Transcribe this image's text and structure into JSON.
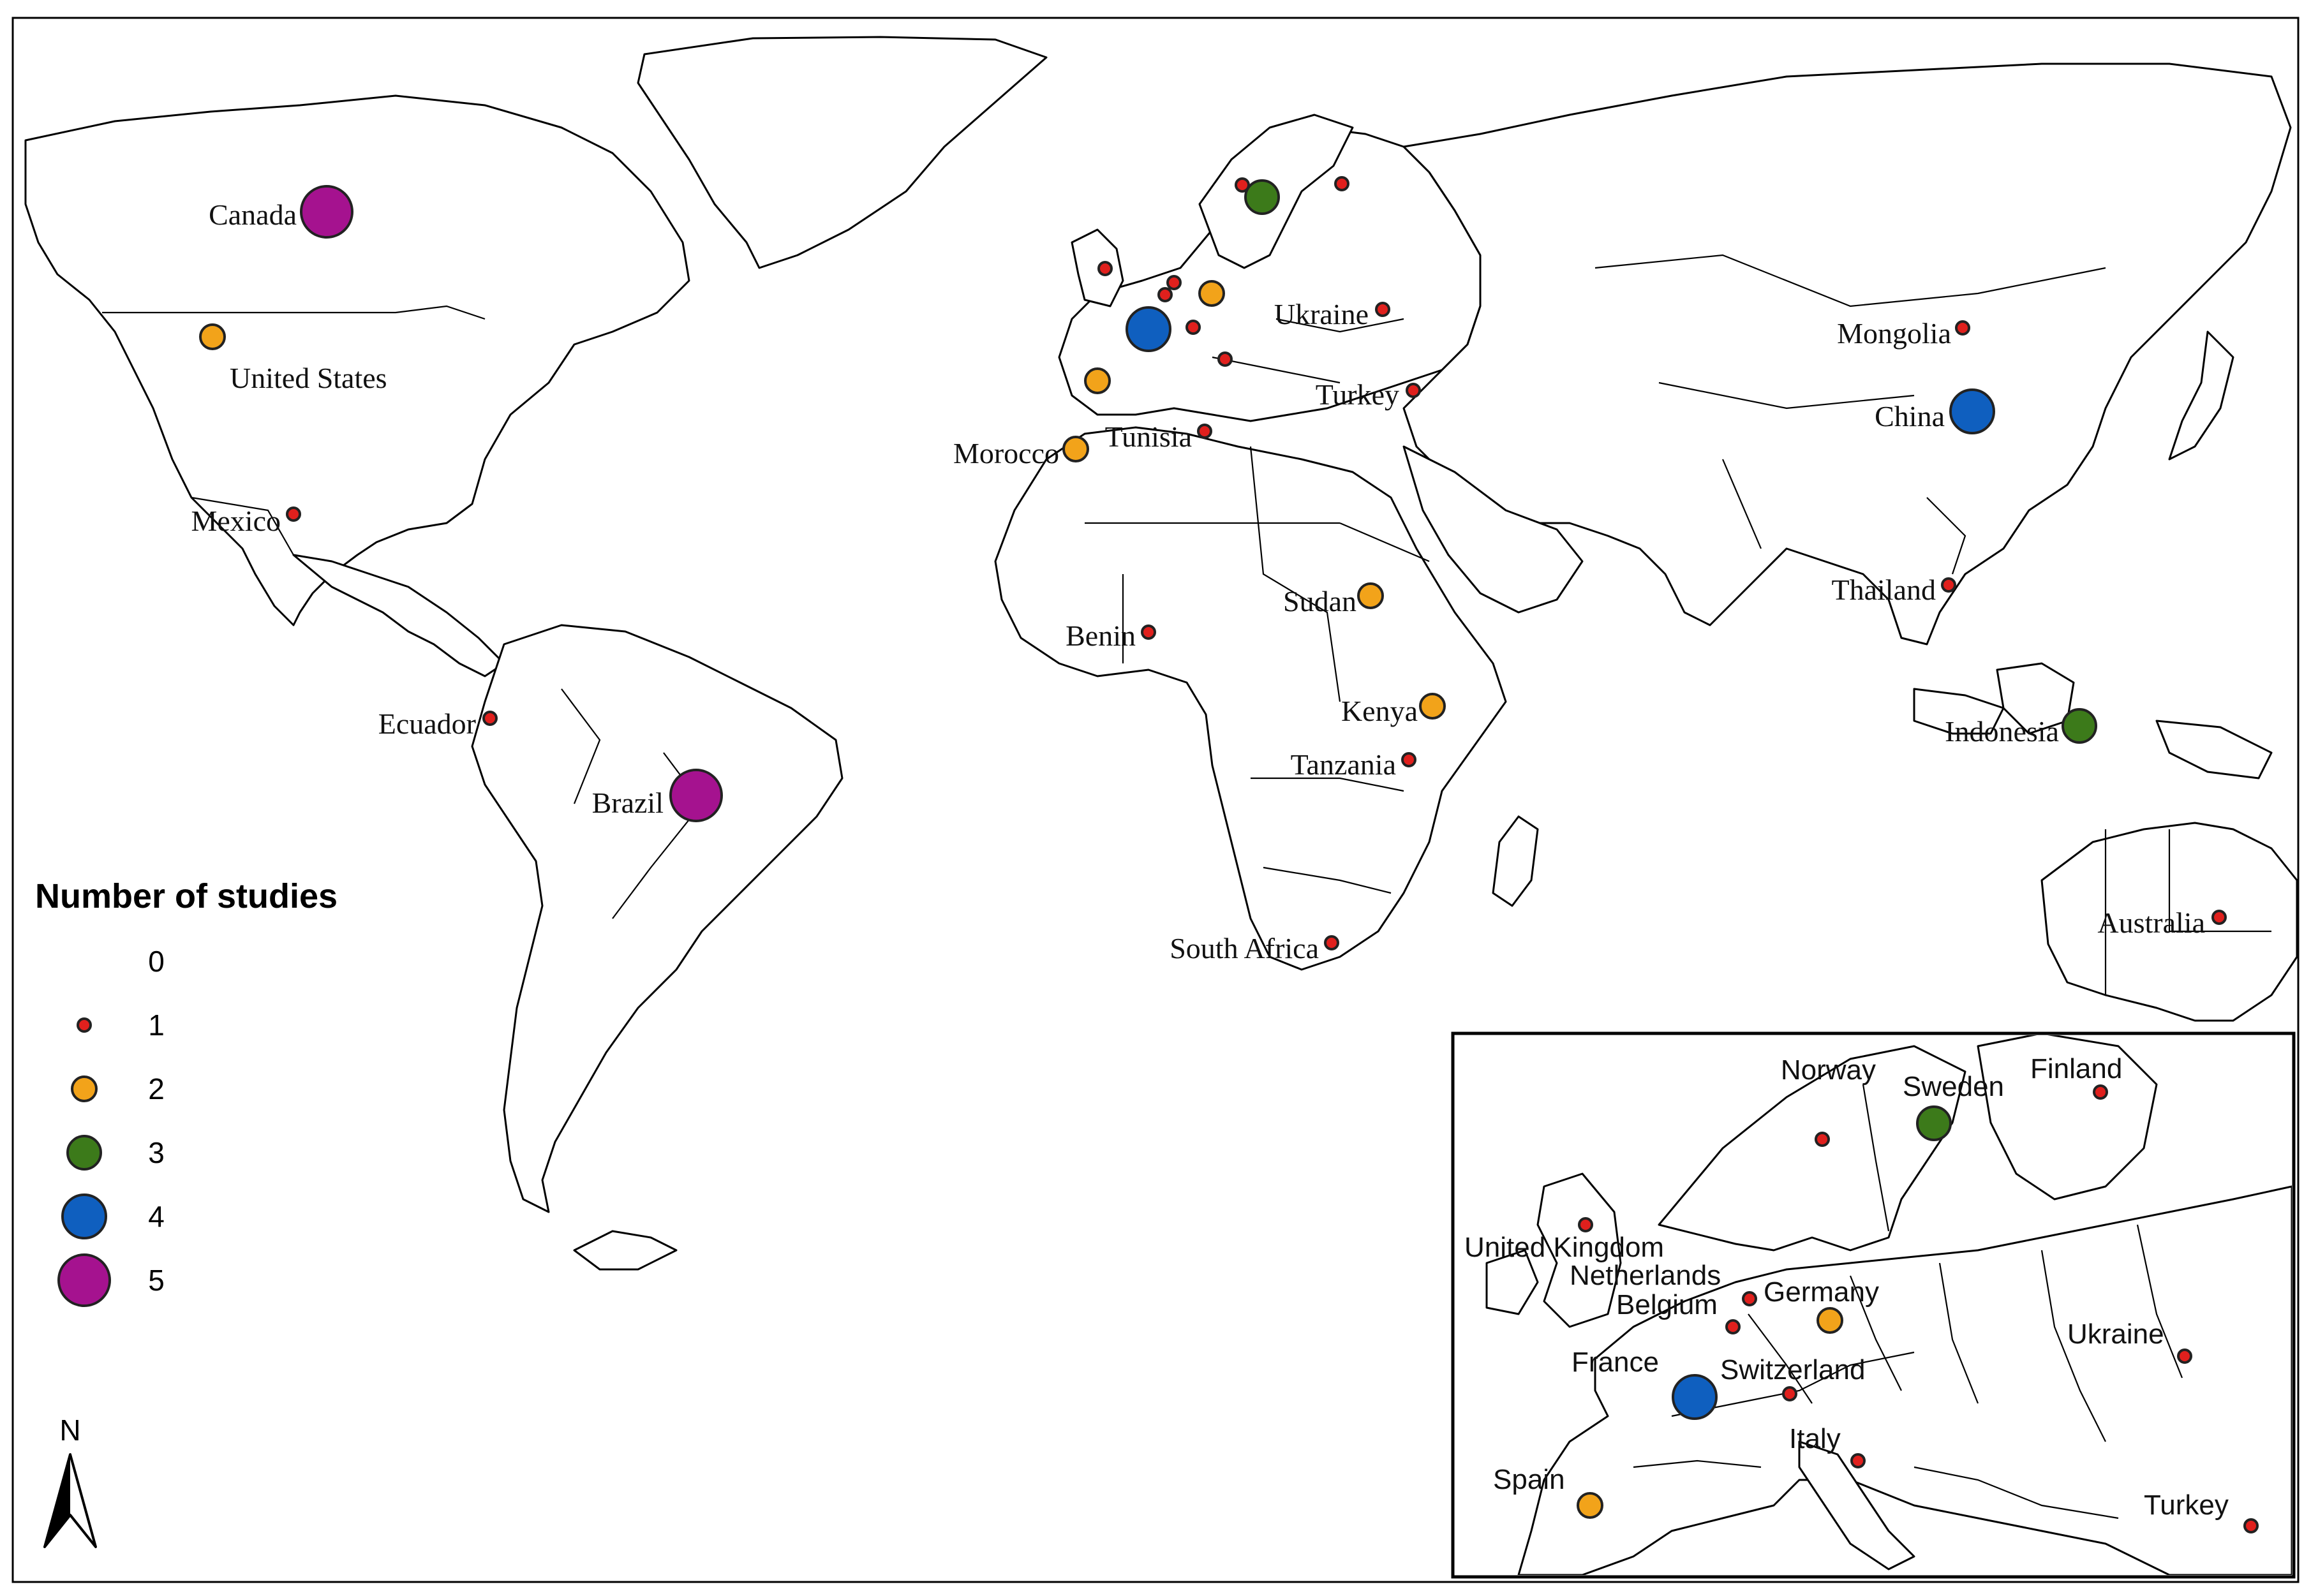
{
  "legend": {
    "title": "Number of studies",
    "items": [
      {
        "label": "0",
        "size": 0,
        "color": ""
      },
      {
        "label": "1",
        "size": 1,
        "color": "#e0201d"
      },
      {
        "label": "2",
        "size": 2,
        "color": "#f2a31a"
      },
      {
        "label": "3",
        "size": 3,
        "color": "#3c7a1a"
      },
      {
        "label": "4",
        "size": 4,
        "color": "#0f5fbf"
      },
      {
        "label": "5",
        "size": 5,
        "color": "#a5128f"
      }
    ]
  },
  "north_arrow": {
    "label": "N"
  },
  "world_points": [
    {
      "name": "Canada",
      "studies": 5
    },
    {
      "name": "United States",
      "studies": 2
    },
    {
      "name": "Mexico",
      "studies": 1
    },
    {
      "name": "Ecuador",
      "studies": 1
    },
    {
      "name": "Brazil",
      "studies": 5
    },
    {
      "name": "Morocco",
      "studies": 2
    },
    {
      "name": "Tunisia",
      "studies": 1
    },
    {
      "name": "Benin",
      "studies": 1
    },
    {
      "name": "Sudan",
      "studies": 2
    },
    {
      "name": "Kenya",
      "studies": 2
    },
    {
      "name": "Tanzania",
      "studies": 1
    },
    {
      "name": "South Africa",
      "studies": 1
    },
    {
      "name": "Ukraine",
      "studies": 1
    },
    {
      "name": "Turkey",
      "studies": 1
    },
    {
      "name": "Mongolia",
      "studies": 1
    },
    {
      "name": "China",
      "studies": 4
    },
    {
      "name": "Thailand",
      "studies": 1
    },
    {
      "name": "Indonesia",
      "studies": 3
    },
    {
      "name": "Australia",
      "studies": 1
    }
  ],
  "world_unlabeled_points": [
    {
      "studies": 1
    },
    {
      "studies": 1
    },
    {
      "studies": 1
    },
    {
      "studies": 1
    },
    {
      "studies": 1
    },
    {
      "studies": 1
    },
    {
      "studies": 1
    },
    {
      "studies": 2
    },
    {
      "studies": 2
    },
    {
      "studies": 3
    },
    {
      "studies": 4
    }
  ],
  "inset_points": [
    {
      "name": "Norway",
      "studies": 1
    },
    {
      "name": "Sweden",
      "studies": 3
    },
    {
      "name": "Finland",
      "studies": 1
    },
    {
      "name": "United Kingdom",
      "studies": 1
    },
    {
      "name": "Netherlands",
      "studies": 1
    },
    {
      "name": "Belgium",
      "studies": 1
    },
    {
      "name": "Germany",
      "studies": 2
    },
    {
      "name": "France",
      "studies": 4
    },
    {
      "name": "Switzerland",
      "studies": 1
    },
    {
      "name": "Italy",
      "studies": 1
    },
    {
      "name": "Spain",
      "studies": 2
    },
    {
      "name": "Ukraine",
      "studies": 1
    },
    {
      "name": "Turkey",
      "studies": 1
    }
  ]
}
